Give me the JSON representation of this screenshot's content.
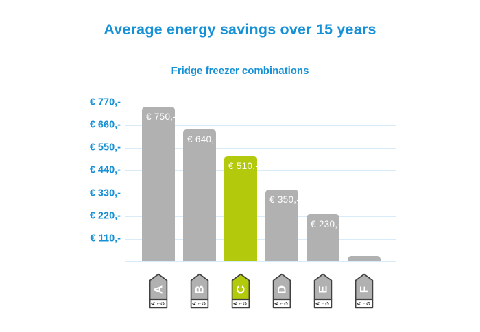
{
  "header": {
    "title": "Average energy savings over 15 years",
    "subtitle": "Fridge freezer combinations"
  },
  "chart_data": {
    "type": "bar",
    "title": "Average energy savings over 15 years",
    "subtitle": "Fridge freezer combinations",
    "categories": [
      "A",
      "B",
      "C",
      "D",
      "E",
      "F"
    ],
    "values": [
      750,
      640,
      510,
      350,
      230,
      25
    ],
    "bar_labels": [
      "€ 750,-",
      "€ 640,-",
      "€ 510,-",
      "€ 350,-",
      "€ 230,-",
      ""
    ],
    "y_ticks": {
      "values": [
        770,
        660,
        550,
        440,
        330,
        220,
        110
      ],
      "labels": [
        "€ 770,-",
        "€ 660,-",
        "€ 550,-",
        "€ 440,-",
        "€ 330,-",
        "€ 220,-",
        "€ 110,-"
      ]
    },
    "ylim": [
      0,
      770
    ],
    "grid": true,
    "baseline": true,
    "highlight_index": 2,
    "x_axis_icons": {
      "style": "eu-energy-label-arrow",
      "scale_text": "A←G"
    },
    "colors": {
      "bar": "#b1b1b1",
      "highlight": "#b2ca0b",
      "axis_text": "#1791d6",
      "gridline": "#d7ebf8",
      "bar_label_text": "#ffffff",
      "icon_border": "#404040",
      "icon_letter": "#ffffff",
      "icon_strip_bg": "#ffffff",
      "icon_strip_text": "#1d1d1d"
    }
  }
}
